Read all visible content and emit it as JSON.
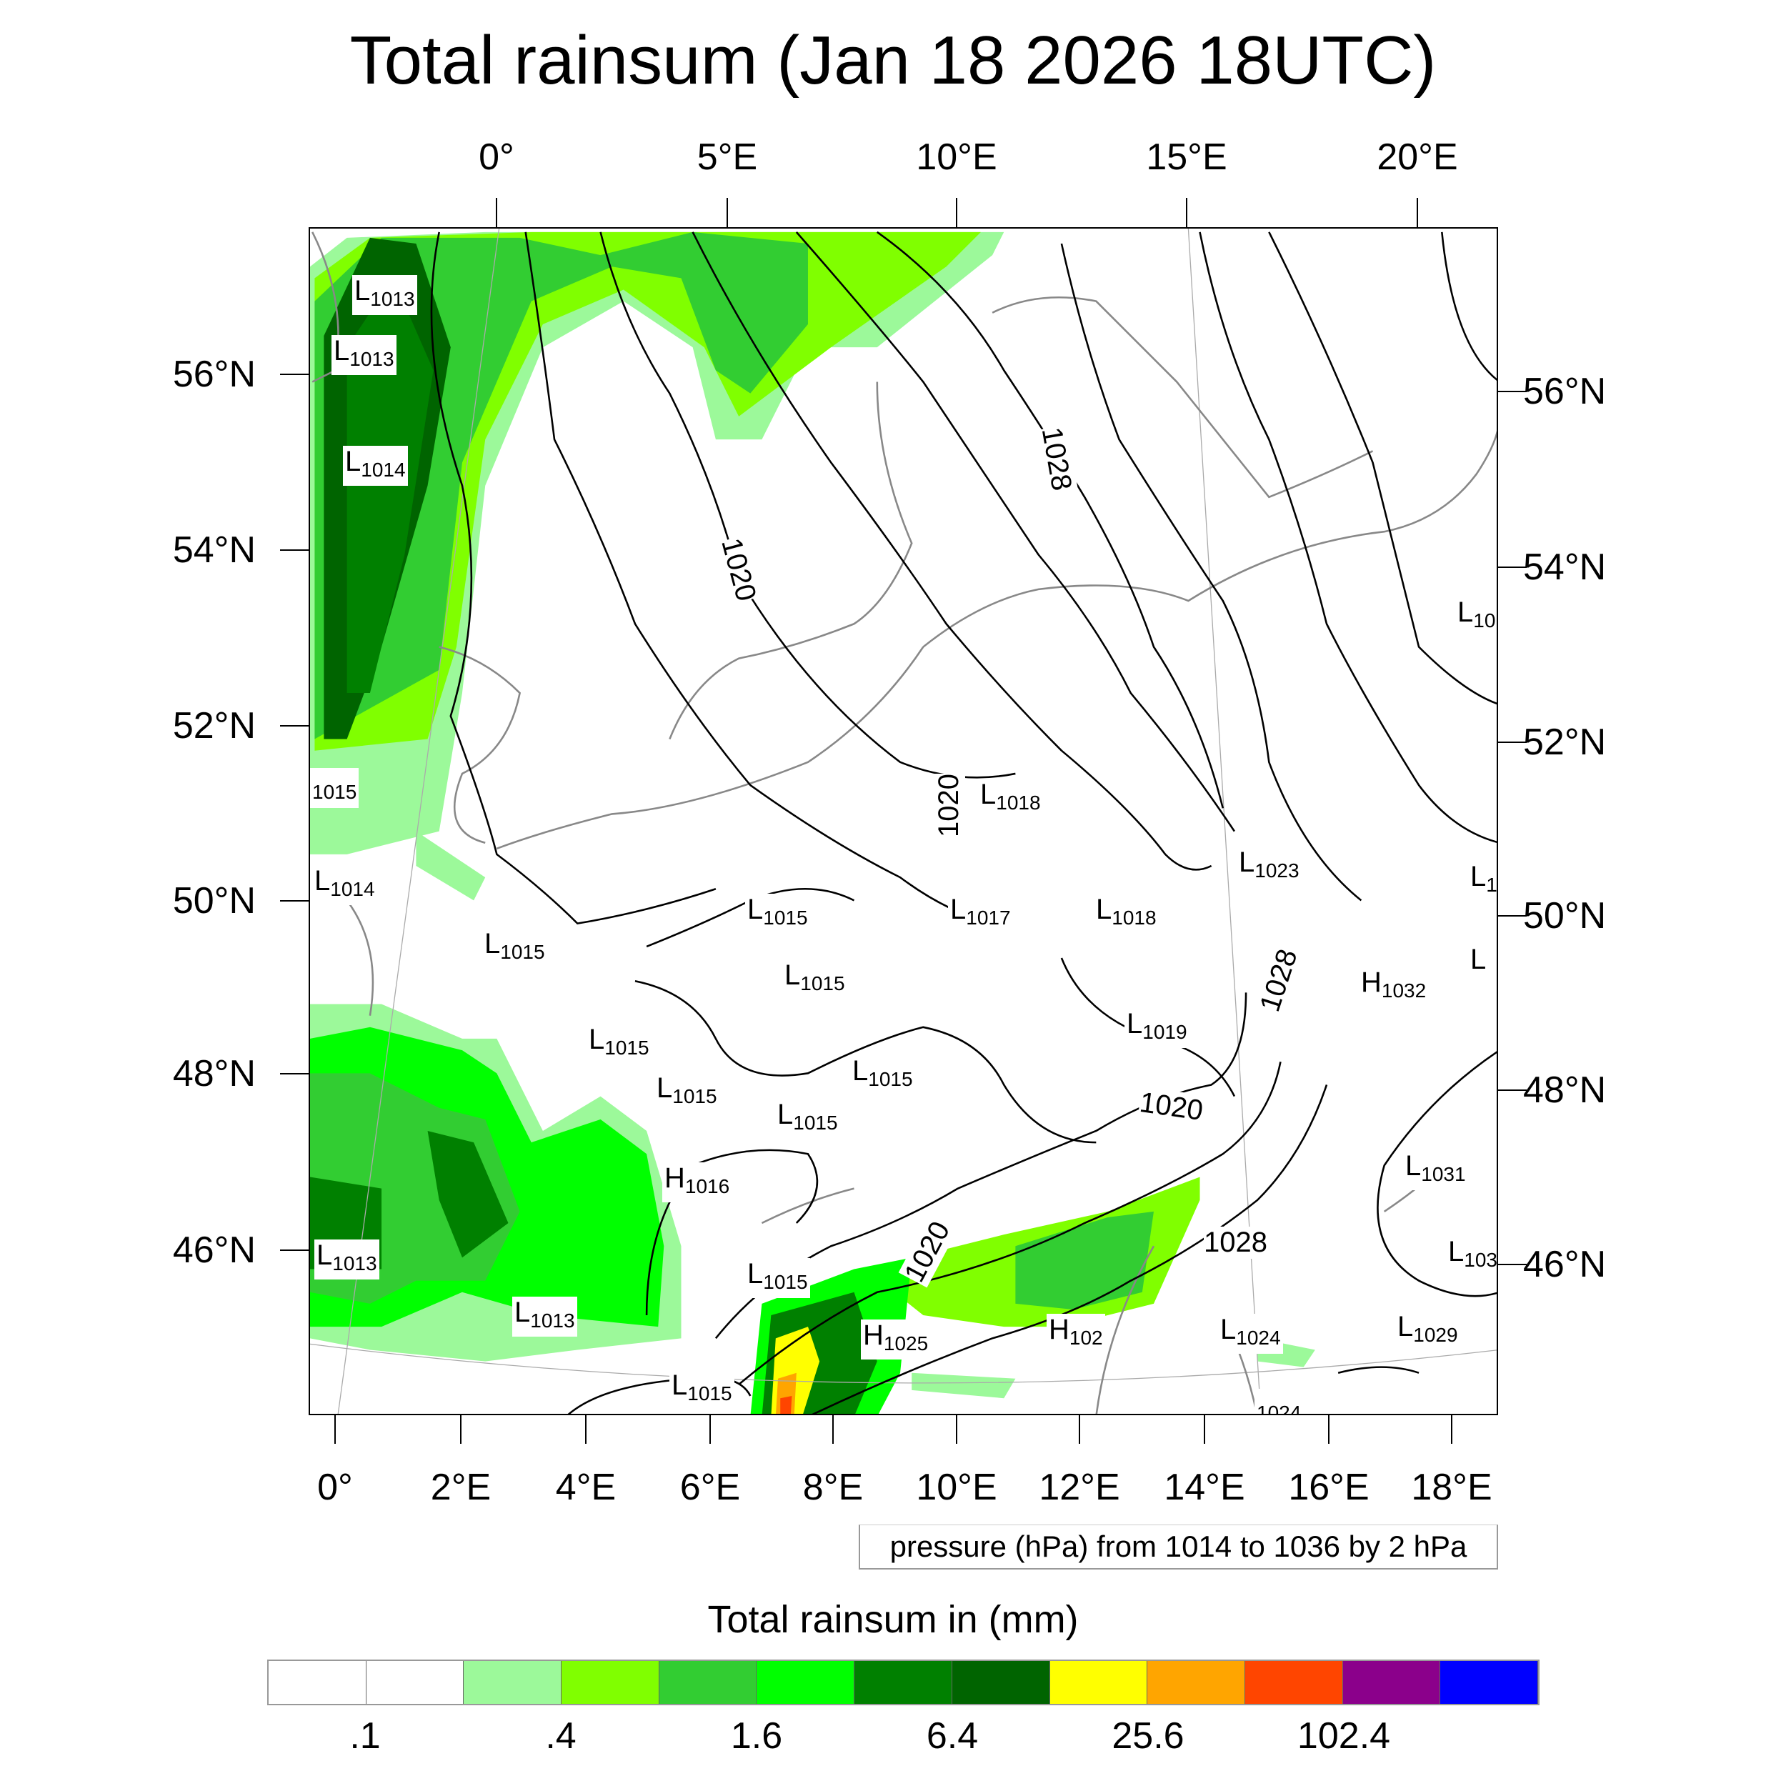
{
  "title": "Total rainsum (Jan 18 2026 18UTC)",
  "top_lon_labels": [
    "0°",
    "5°E",
    "10°E",
    "15°E",
    "20°E"
  ],
  "bottom_lon_labels": [
    "0°",
    "2°E",
    "4°E",
    "6°E",
    "8°E",
    "10°E",
    "12°E",
    "14°E",
    "16°E",
    "18°E"
  ],
  "left_lat_labels": [
    "56°N",
    "54°N",
    "52°N",
    "50°N",
    "48°N",
    "46°N"
  ],
  "right_lat_labels": [
    "56°N",
    "54°N",
    "52°N",
    "50°N",
    "48°N",
    "46°N"
  ],
  "legend": "pressure (hPa) from 1014 to 1036 by 2 hPa",
  "colorbar": {
    "title": "Total rainsum in (mm)",
    "colors": [
      "#ffffff",
      "#ffffff",
      "#9cf99a",
      "#80ff00",
      "#32cd32",
      "#00ff00",
      "#008000",
      "#006400",
      "#ffff00",
      "#ffa500",
      "#ff4500",
      "#8b008b",
      "#0000ff"
    ],
    "labels": [
      ".1",
      ".4",
      "1.6",
      "6.4",
      "25.6",
      "102.4"
    ]
  },
  "pressure_centers": [
    {
      "t": "L",
      "v": "1013"
    },
    {
      "t": "L",
      "v": "1013"
    },
    {
      "t": "L",
      "v": "1014"
    },
    {
      "t": "",
      "v": "1015"
    },
    {
      "t": "L",
      "v": "1014"
    },
    {
      "t": "L",
      "v": "1015"
    },
    {
      "t": "L",
      "v": "1015"
    },
    {
      "t": "L",
      "v": "1015"
    },
    {
      "t": "L",
      "v": "1018"
    },
    {
      "t": "L",
      "v": "1017"
    },
    {
      "t": "L",
      "v": "1018"
    },
    {
      "t": "L",
      "v": "1023"
    },
    {
      "t": "L",
      "v": "1019"
    },
    {
      "t": "H",
      "v": "1032"
    },
    {
      "t": "L",
      "v": "1015"
    },
    {
      "t": "L",
      "v": "1015"
    },
    {
      "t": "L",
      "v": "1015"
    },
    {
      "t": "L",
      "v": "1015"
    },
    {
      "t": "H",
      "v": "1016"
    },
    {
      "t": "L",
      "v": "1013"
    },
    {
      "t": "L",
      "v": "1013"
    },
    {
      "t": "L",
      "v": "1015"
    },
    {
      "t": "H",
      "v": "1025"
    },
    {
      "t": "H",
      "v": "102"
    },
    {
      "t": "L",
      "v": "1024"
    },
    {
      "t": "L",
      "v": "1029"
    },
    {
      "t": "L",
      "v": "1031"
    },
    {
      "t": "L",
      "v": "103"
    },
    {
      "t": "L",
      "v": "1015"
    },
    {
      "t": "",
      "v": "1024"
    },
    {
      "t": "L",
      "v": "10"
    },
    {
      "t": "L",
      "v": "1"
    },
    {
      "t": "L",
      "v": ""
    }
  ],
  "contour_labels": [
    "1020",
    "1020",
    "1020",
    "1020",
    "1028",
    "1028",
    "1028"
  ],
  "chart_data": {
    "type": "heatmap",
    "title": "Total rainsum (Jan 18 2026 18UTC)",
    "colorbar_levels_mm": [
      0.1,
      0.2,
      0.4,
      0.8,
      1.6,
      3.2,
      6.4,
      12.8,
      25.6,
      51.2,
      102.4,
      204.8
    ],
    "lon_range": [
      0,
      18
    ],
    "lat_range": [
      45,
      57
    ],
    "contour_field": "pressure (hPa)",
    "contour_range": [
      1014,
      1036
    ],
    "contour_interval": 2
  }
}
